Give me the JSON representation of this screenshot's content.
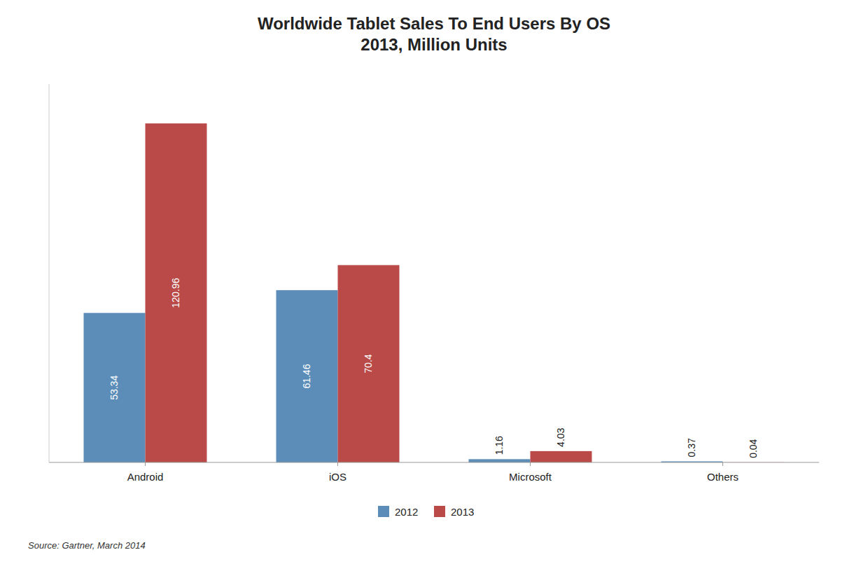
{
  "chart_data": {
    "type": "bar",
    "title": "Worldwide Tablet Sales To End Users By OS\n2013, Million Units",
    "categories": [
      "Android",
      "iOS",
      "Microsoft",
      "Others"
    ],
    "series": [
      {
        "name": "2012",
        "color": "#5b8db8",
        "values": [
          53.34,
          61.46,
          1.16,
          0.37
        ]
      },
      {
        "name": "2013",
        "color": "#b94a48",
        "values": [
          120.96,
          70.4,
          4.03,
          0.04
        ]
      }
    ],
    "ylim": [
      0,
      135
    ],
    "tick_labels": "x",
    "data_labels": true,
    "legend": "bottom",
    "annotations": [
      "Source: Gartner, March 2014"
    ]
  }
}
